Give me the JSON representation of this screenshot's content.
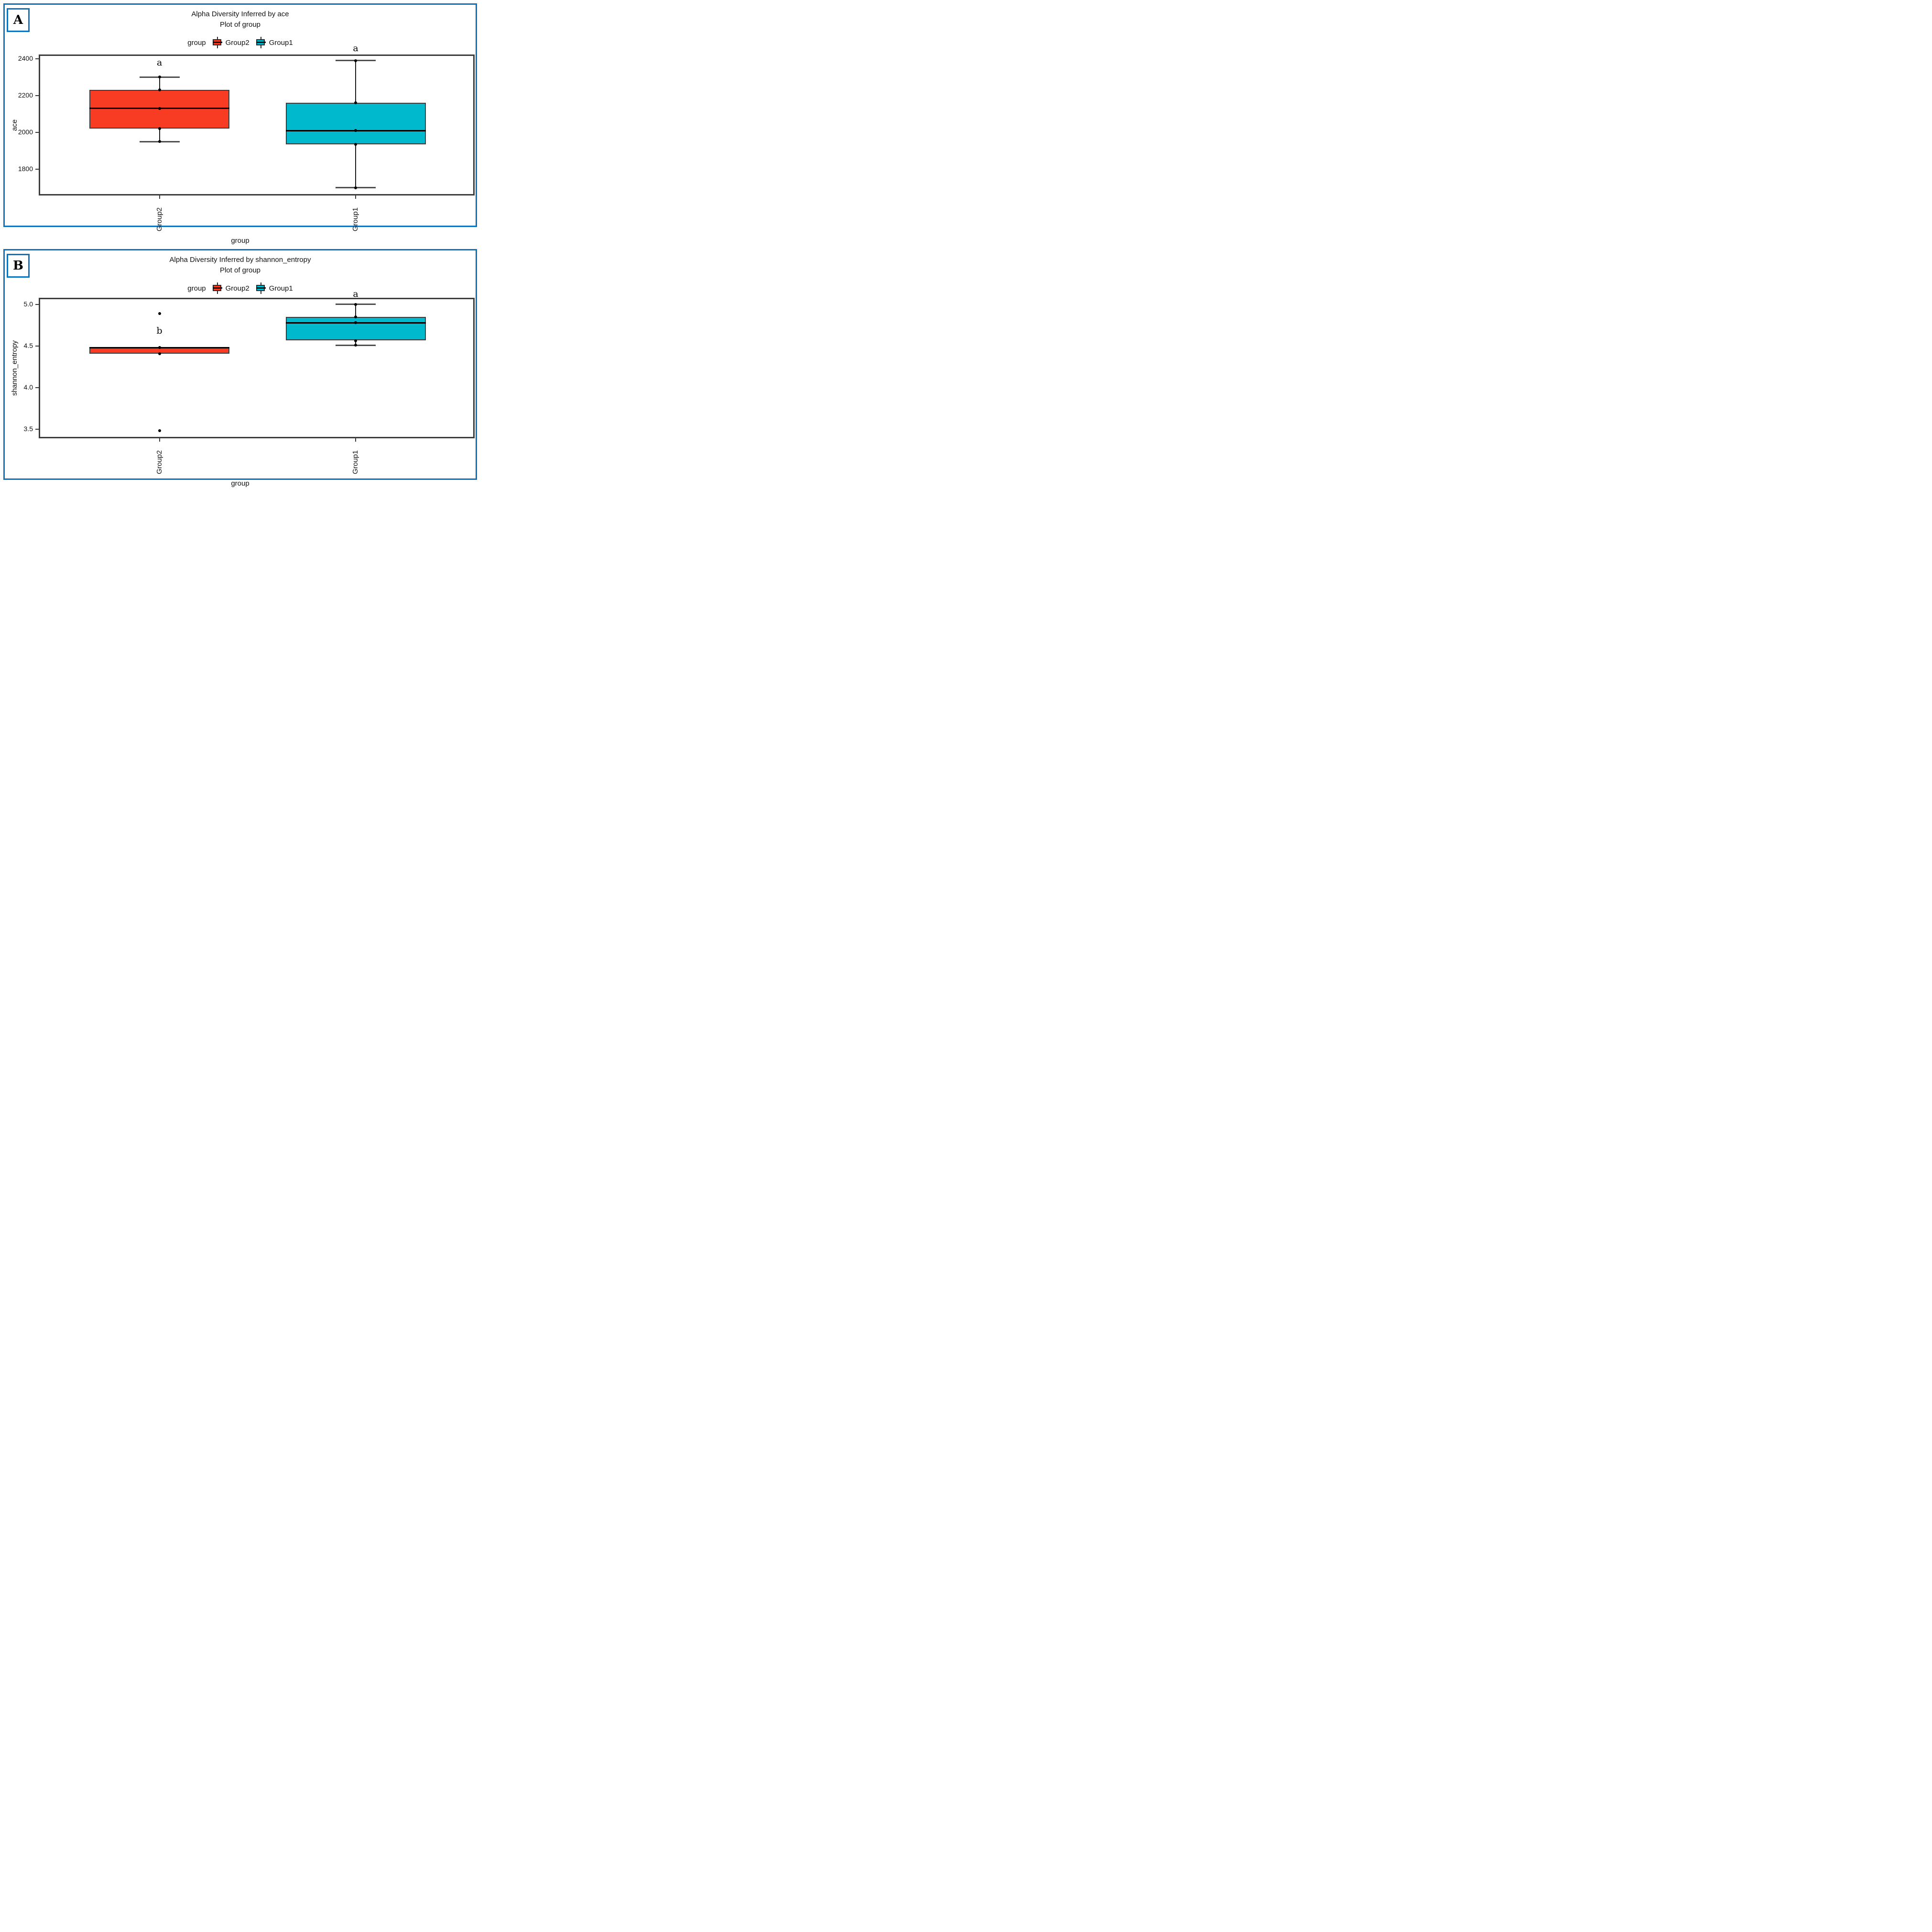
{
  "figure": {
    "panel_labels": [
      "A",
      "B"
    ],
    "border_color": "#1074bc",
    "frame_color": "#3c3c3c",
    "box_colors": {
      "Group2": "#f83c23",
      "Group1": "#00b9cd"
    }
  },
  "chart_data": [
    {
      "type": "box",
      "panel": "A",
      "title": "Alpha Diversity Inferred by ace",
      "subtitle": "Plot of group",
      "xlabel": "group",
      "ylabel": "ace",
      "yticks": [
        2400,
        2200,
        2000,
        1800
      ],
      "ytick_labels": [
        "2400",
        "2200",
        "2000",
        "1800"
      ],
      "ylim": [
        1658,
        2423
      ],
      "grid": false,
      "legend_position": "top",
      "legend": {
        "title": "group",
        "entries": [
          {
            "label": "Group2",
            "color": "#f83c23"
          },
          {
            "label": "Group1",
            "color": "#00b9cd"
          }
        ]
      },
      "categories": [
        "Group2",
        "Group1"
      ],
      "series": [
        {
          "name": "Group2",
          "color": "#f83c23",
          "whisker_low": 1950,
          "q1": 2020,
          "median": 2130,
          "q3": 2230,
          "whisker_high": 2300,
          "outliers": [],
          "points": [
            1950,
            2020,
            2130,
            2230,
            2300
          ],
          "sig_letter": "a",
          "sig_letter_y": 2377
        },
        {
          "name": "Group1",
          "color": "#00b9cd",
          "whisker_low": 1700,
          "q1": 1935,
          "median": 2010,
          "q3": 2160,
          "whisker_high": 2390,
          "outliers": [],
          "points": [
            1700,
            1935,
            2010,
            2160,
            2390
          ],
          "sig_letter": "a",
          "sig_letter_y": 2454
        }
      ]
    },
    {
      "type": "box",
      "panel": "B",
      "title": "Alpha Diversity Inferred by shannon_entropy",
      "subtitle": "Plot of group",
      "xlabel": "group",
      "ylabel": "shannon_entropy",
      "yticks": [
        5.0,
        4.5,
        4.0,
        3.5
      ],
      "ytick_labels": [
        "5.0",
        "4.5",
        "4.0",
        "3.5"
      ],
      "ylim": [
        3.39,
        5.08
      ],
      "grid": false,
      "legend_position": "top",
      "legend": {
        "title": "group",
        "entries": [
          {
            "label": "Group2",
            "color": "#f83c23"
          },
          {
            "label": "Group1",
            "color": "#00b9cd"
          }
        ]
      },
      "categories": [
        "Group2",
        "Group1"
      ],
      "series": [
        {
          "name": "Group2",
          "color": "#f83c23",
          "whisker_low": 4.41,
          "q1": 4.41,
          "median": 4.48,
          "q3": 4.49,
          "whisker_high": 4.49,
          "outliers": [
            4.89,
            3.48
          ],
          "points": [
            4.48,
            4.41
          ],
          "sig_letter": "b",
          "sig_letter_y": 4.68
        },
        {
          "name": "Group1",
          "color": "#00b9cd",
          "whisker_low": 4.51,
          "q1": 4.57,
          "median": 4.78,
          "q3": 4.85,
          "whisker_high": 5.0,
          "outliers": [],
          "points": [
            5.0,
            4.85,
            4.78,
            4.56,
            4.51
          ],
          "sig_letter": "a",
          "sig_letter_y": 5.12
        }
      ]
    }
  ]
}
